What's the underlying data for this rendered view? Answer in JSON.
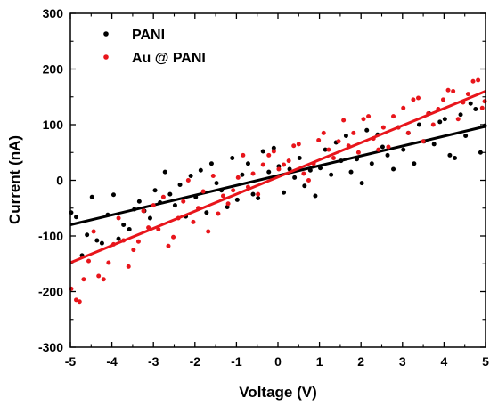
{
  "chart_data": {
    "type": "scatter",
    "xlabel": "Voltage (V)",
    "ylabel": "Current (nA)",
    "xlim": [
      -5,
      5
    ],
    "ylim": [
      -300,
      300
    ],
    "x_ticks": [
      -5,
      -4,
      -3,
      -2,
      -1,
      0,
      1,
      2,
      3,
      4,
      5
    ],
    "y_ticks": [
      -300,
      -200,
      -100,
      0,
      100,
      200,
      300
    ],
    "legend_position": "top-left",
    "grid": false,
    "series": [
      {
        "name": "PANI",
        "color": "#000000",
        "fit_line": [
          [
            -5,
            -80
          ],
          [
            5,
            97
          ]
        ],
        "points": [
          [
            -4.98,
            -58
          ],
          [
            -4.86,
            -66
          ],
          [
            -4.72,
            -135
          ],
          [
            -4.6,
            -98
          ],
          [
            -4.48,
            -30
          ],
          [
            -4.36,
            -108
          ],
          [
            -4.24,
            -113
          ],
          [
            -4.1,
            -62
          ],
          [
            -3.96,
            -26
          ],
          [
            -3.84,
            -105
          ],
          [
            -3.72,
            -80
          ],
          [
            -3.58,
            -88
          ],
          [
            -3.46,
            -52
          ],
          [
            -3.34,
            -38
          ],
          [
            -3.22,
            -55
          ],
          [
            -3.08,
            -68
          ],
          [
            -2.96,
            -18
          ],
          [
            -2.84,
            -40
          ],
          [
            -2.72,
            15
          ],
          [
            -2.6,
            -25
          ],
          [
            -2.48,
            -45
          ],
          [
            -2.36,
            -8
          ],
          [
            -2.22,
            -65
          ],
          [
            -2.1,
            8
          ],
          [
            -1.98,
            -30
          ],
          [
            -1.86,
            18
          ],
          [
            -1.72,
            -58
          ],
          [
            -1.6,
            30
          ],
          [
            -1.48,
            -5
          ],
          [
            -1.36,
            -18
          ],
          [
            -1.22,
            -48
          ],
          [
            -1.1,
            40
          ],
          [
            -0.98,
            -35
          ],
          [
            -0.86,
            10
          ],
          [
            -0.72,
            30
          ],
          [
            -0.6,
            -25
          ],
          [
            -0.48,
            -32
          ],
          [
            -0.36,
            52
          ],
          [
            -0.22,
            15
          ],
          [
            -0.1,
            58
          ],
          [
            0.02,
            25
          ],
          [
            0.14,
            -22
          ],
          [
            0.28,
            20
          ],
          [
            0.4,
            5
          ],
          [
            0.52,
            40
          ],
          [
            0.64,
            -10
          ],
          [
            0.78,
            18
          ],
          [
            0.9,
            -28
          ],
          [
            1.02,
            22
          ],
          [
            1.14,
            55
          ],
          [
            1.28,
            10
          ],
          [
            1.4,
            68
          ],
          [
            1.52,
            35
          ],
          [
            1.64,
            80
          ],
          [
            1.76,
            15
          ],
          [
            1.9,
            38
          ],
          [
            2.02,
            -5
          ],
          [
            2.14,
            90
          ],
          [
            2.26,
            30
          ],
          [
            2.4,
            82
          ],
          [
            2.52,
            60
          ],
          [
            2.64,
            45
          ],
          [
            2.78,
            20
          ],
          [
            2.9,
            95
          ],
          [
            3.02,
            55
          ],
          [
            3.14,
            85
          ],
          [
            3.28,
            30
          ],
          [
            3.4,
            100
          ],
          [
            3.52,
            70
          ],
          [
            3.64,
            120
          ],
          [
            3.76,
            65
          ],
          [
            3.9,
            105
          ],
          [
            4.02,
            110
          ],
          [
            4.14,
            45
          ],
          [
            4.26,
            40
          ],
          [
            4.4,
            118
          ],
          [
            4.52,
            80
          ],
          [
            4.64,
            138
          ],
          [
            4.76,
            128
          ],
          [
            4.88,
            50
          ],
          [
            4.98,
            98
          ]
        ]
      },
      {
        "name": "Au @ PANI",
        "color": "#e8151b",
        "fit_line": [
          [
            -5,
            -148
          ],
          [
            5,
            160
          ]
        ],
        "points": [
          [
            -4.98,
            -195
          ],
          [
            -4.86,
            -215
          ],
          [
            -4.78,
            -218
          ],
          [
            -4.68,
            -178
          ],
          [
            -4.56,
            -145
          ],
          [
            -4.44,
            -92
          ],
          [
            -4.32,
            -172
          ],
          [
            -4.2,
            -178
          ],
          [
            -4.08,
            -148
          ],
          [
            -3.96,
            -115
          ],
          [
            -3.84,
            -68
          ],
          [
            -3.72,
            -108
          ],
          [
            -3.6,
            -155
          ],
          [
            -3.48,
            -125
          ],
          [
            -3.36,
            -110
          ],
          [
            -3.24,
            -55
          ],
          [
            -3.12,
            -85
          ],
          [
            -3.0,
            -45
          ],
          [
            -2.88,
            -88
          ],
          [
            -2.76,
            -30
          ],
          [
            -2.64,
            -118
          ],
          [
            -2.52,
            -102
          ],
          [
            -2.4,
            -68
          ],
          [
            -2.28,
            -38
          ],
          [
            -2.16,
            0
          ],
          [
            -2.04,
            -75
          ],
          [
            -1.92,
            -50
          ],
          [
            -1.8,
            -20
          ],
          [
            -1.68,
            -92
          ],
          [
            -1.56,
            8
          ],
          [
            -1.44,
            -60
          ],
          [
            -1.32,
            -28
          ],
          [
            -1.2,
            -42
          ],
          [
            -1.08,
            -18
          ],
          [
            -0.96,
            5
          ],
          [
            -0.84,
            45
          ],
          [
            -0.72,
            -12
          ],
          [
            -0.6,
            12
          ],
          [
            -0.48,
            -25
          ],
          [
            -0.36,
            28
          ],
          [
            -0.22,
            45
          ],
          [
            -0.1,
            52
          ],
          [
            0.02,
            20
          ],
          [
            0.14,
            28
          ],
          [
            0.26,
            35
          ],
          [
            0.38,
            62
          ],
          [
            0.5,
            65
          ],
          [
            0.62,
            12
          ],
          [
            0.74,
            0
          ],
          [
            0.86,
            30
          ],
          [
            0.98,
            72
          ],
          [
            1.1,
            85
          ],
          [
            1.22,
            55
          ],
          [
            1.34,
            40
          ],
          [
            1.46,
            70
          ],
          [
            1.58,
            108
          ],
          [
            1.7,
            62
          ],
          [
            1.82,
            85
          ],
          [
            1.94,
            50
          ],
          [
            2.06,
            110
          ],
          [
            2.18,
            115
          ],
          [
            2.3,
            75
          ],
          [
            2.42,
            55
          ],
          [
            2.54,
            95
          ],
          [
            2.66,
            60
          ],
          [
            2.78,
            115
          ],
          [
            2.9,
            95
          ],
          [
            3.02,
            130
          ],
          [
            3.14,
            85
          ],
          [
            3.26,
            145
          ],
          [
            3.38,
            148
          ],
          [
            3.5,
            70
          ],
          [
            3.62,
            120
          ],
          [
            3.74,
            100
          ],
          [
            3.86,
            128
          ],
          [
            3.98,
            145
          ],
          [
            4.1,
            162
          ],
          [
            4.22,
            160
          ],
          [
            4.34,
            110
          ],
          [
            4.46,
            140
          ],
          [
            4.58,
            155
          ],
          [
            4.7,
            178
          ],
          [
            4.82,
            180
          ],
          [
            4.92,
            130
          ],
          [
            4.98,
            142
          ]
        ]
      }
    ]
  }
}
